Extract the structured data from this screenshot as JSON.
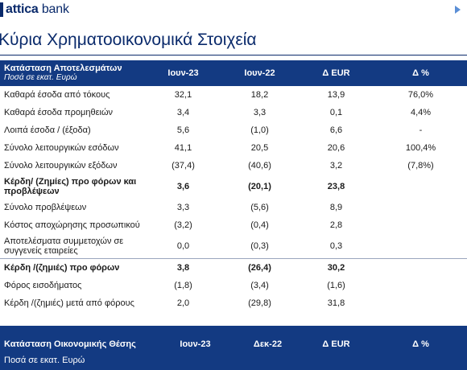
{
  "logo": {
    "brand": "attica",
    "suffix": "bank"
  },
  "page_title": "Κύρια Χρηματοοικονομικά Στοιχεία",
  "income_statement": {
    "title": "Κατάσταση Αποτελεσμάτων",
    "subtitle": "Ποσά σε εκατ. Ευρώ",
    "columns": [
      "Ιουν-23",
      "Ιουν-22",
      "Δ EUR",
      "Δ %"
    ],
    "rows": [
      {
        "label": "Καθαρά έσοδα από τόκους",
        "values": [
          "32,1",
          "18,2",
          "13,9",
          "76,0%"
        ]
      },
      {
        "label": "Καθαρά έσοδα προμηθειών",
        "values": [
          "3,4",
          "3,3",
          "0,1",
          "4,4%"
        ]
      },
      {
        "label": "Λοιπά έσοδα / (έξοδα)",
        "values": [
          "5,6",
          "(1,0)",
          "6,6",
          "-"
        ]
      },
      {
        "label": "Σύνολο λειτουργικών εσόδων",
        "values": [
          "41,1",
          "20,5",
          "20,6",
          "100,4%"
        ]
      },
      {
        "label": "Σύνολο λειτουργικών εξόδων",
        "values": [
          "(37,4)",
          "(40,6)",
          "3,2",
          "(7,8%)"
        ]
      },
      {
        "label": "Κέρδη/ (Ζημίες) προ φόρων και προβλέψεων",
        "values": [
          "3,6",
          "(20,1)",
          "23,8",
          ""
        ]
      },
      {
        "label": "Σύνολο προβλέψεων",
        "values": [
          "3,3",
          "(5,6)",
          "8,9",
          ""
        ]
      },
      {
        "label": "Κόστος αποχώρησης προσωπικού",
        "values": [
          "(3,2)",
          "(0,4)",
          "2,8",
          ""
        ]
      },
      {
        "label": "Αποτελέσματα συμμετοχών σε συγγενείς εταιρείες",
        "values": [
          "0,0",
          "(0,3)",
          "0,3",
          ""
        ]
      },
      {
        "label": "Κέρδη /(ζημιές) προ φόρων",
        "values": [
          "3,8",
          "(26,4)",
          "30,2",
          ""
        ]
      },
      {
        "label": "Φόρος εισοδήματος",
        "values": [
          "(1,8)",
          "(3,4)",
          "(1,6)",
          ""
        ]
      },
      {
        "label": "Κέρδη /(ζημιές) μετά από φόρους",
        "values": [
          "2,0",
          "(29,8)",
          "31,8",
          ""
        ]
      }
    ]
  },
  "balance_sheet": {
    "title": "Κατάσταση Οικονομικής Θέσης",
    "subtitle": "Ποσά σε εκατ. Ευρώ",
    "columns": [
      "Ιουν-23",
      "Δεκ-22",
      "Δ EUR",
      "Δ %"
    ]
  }
}
